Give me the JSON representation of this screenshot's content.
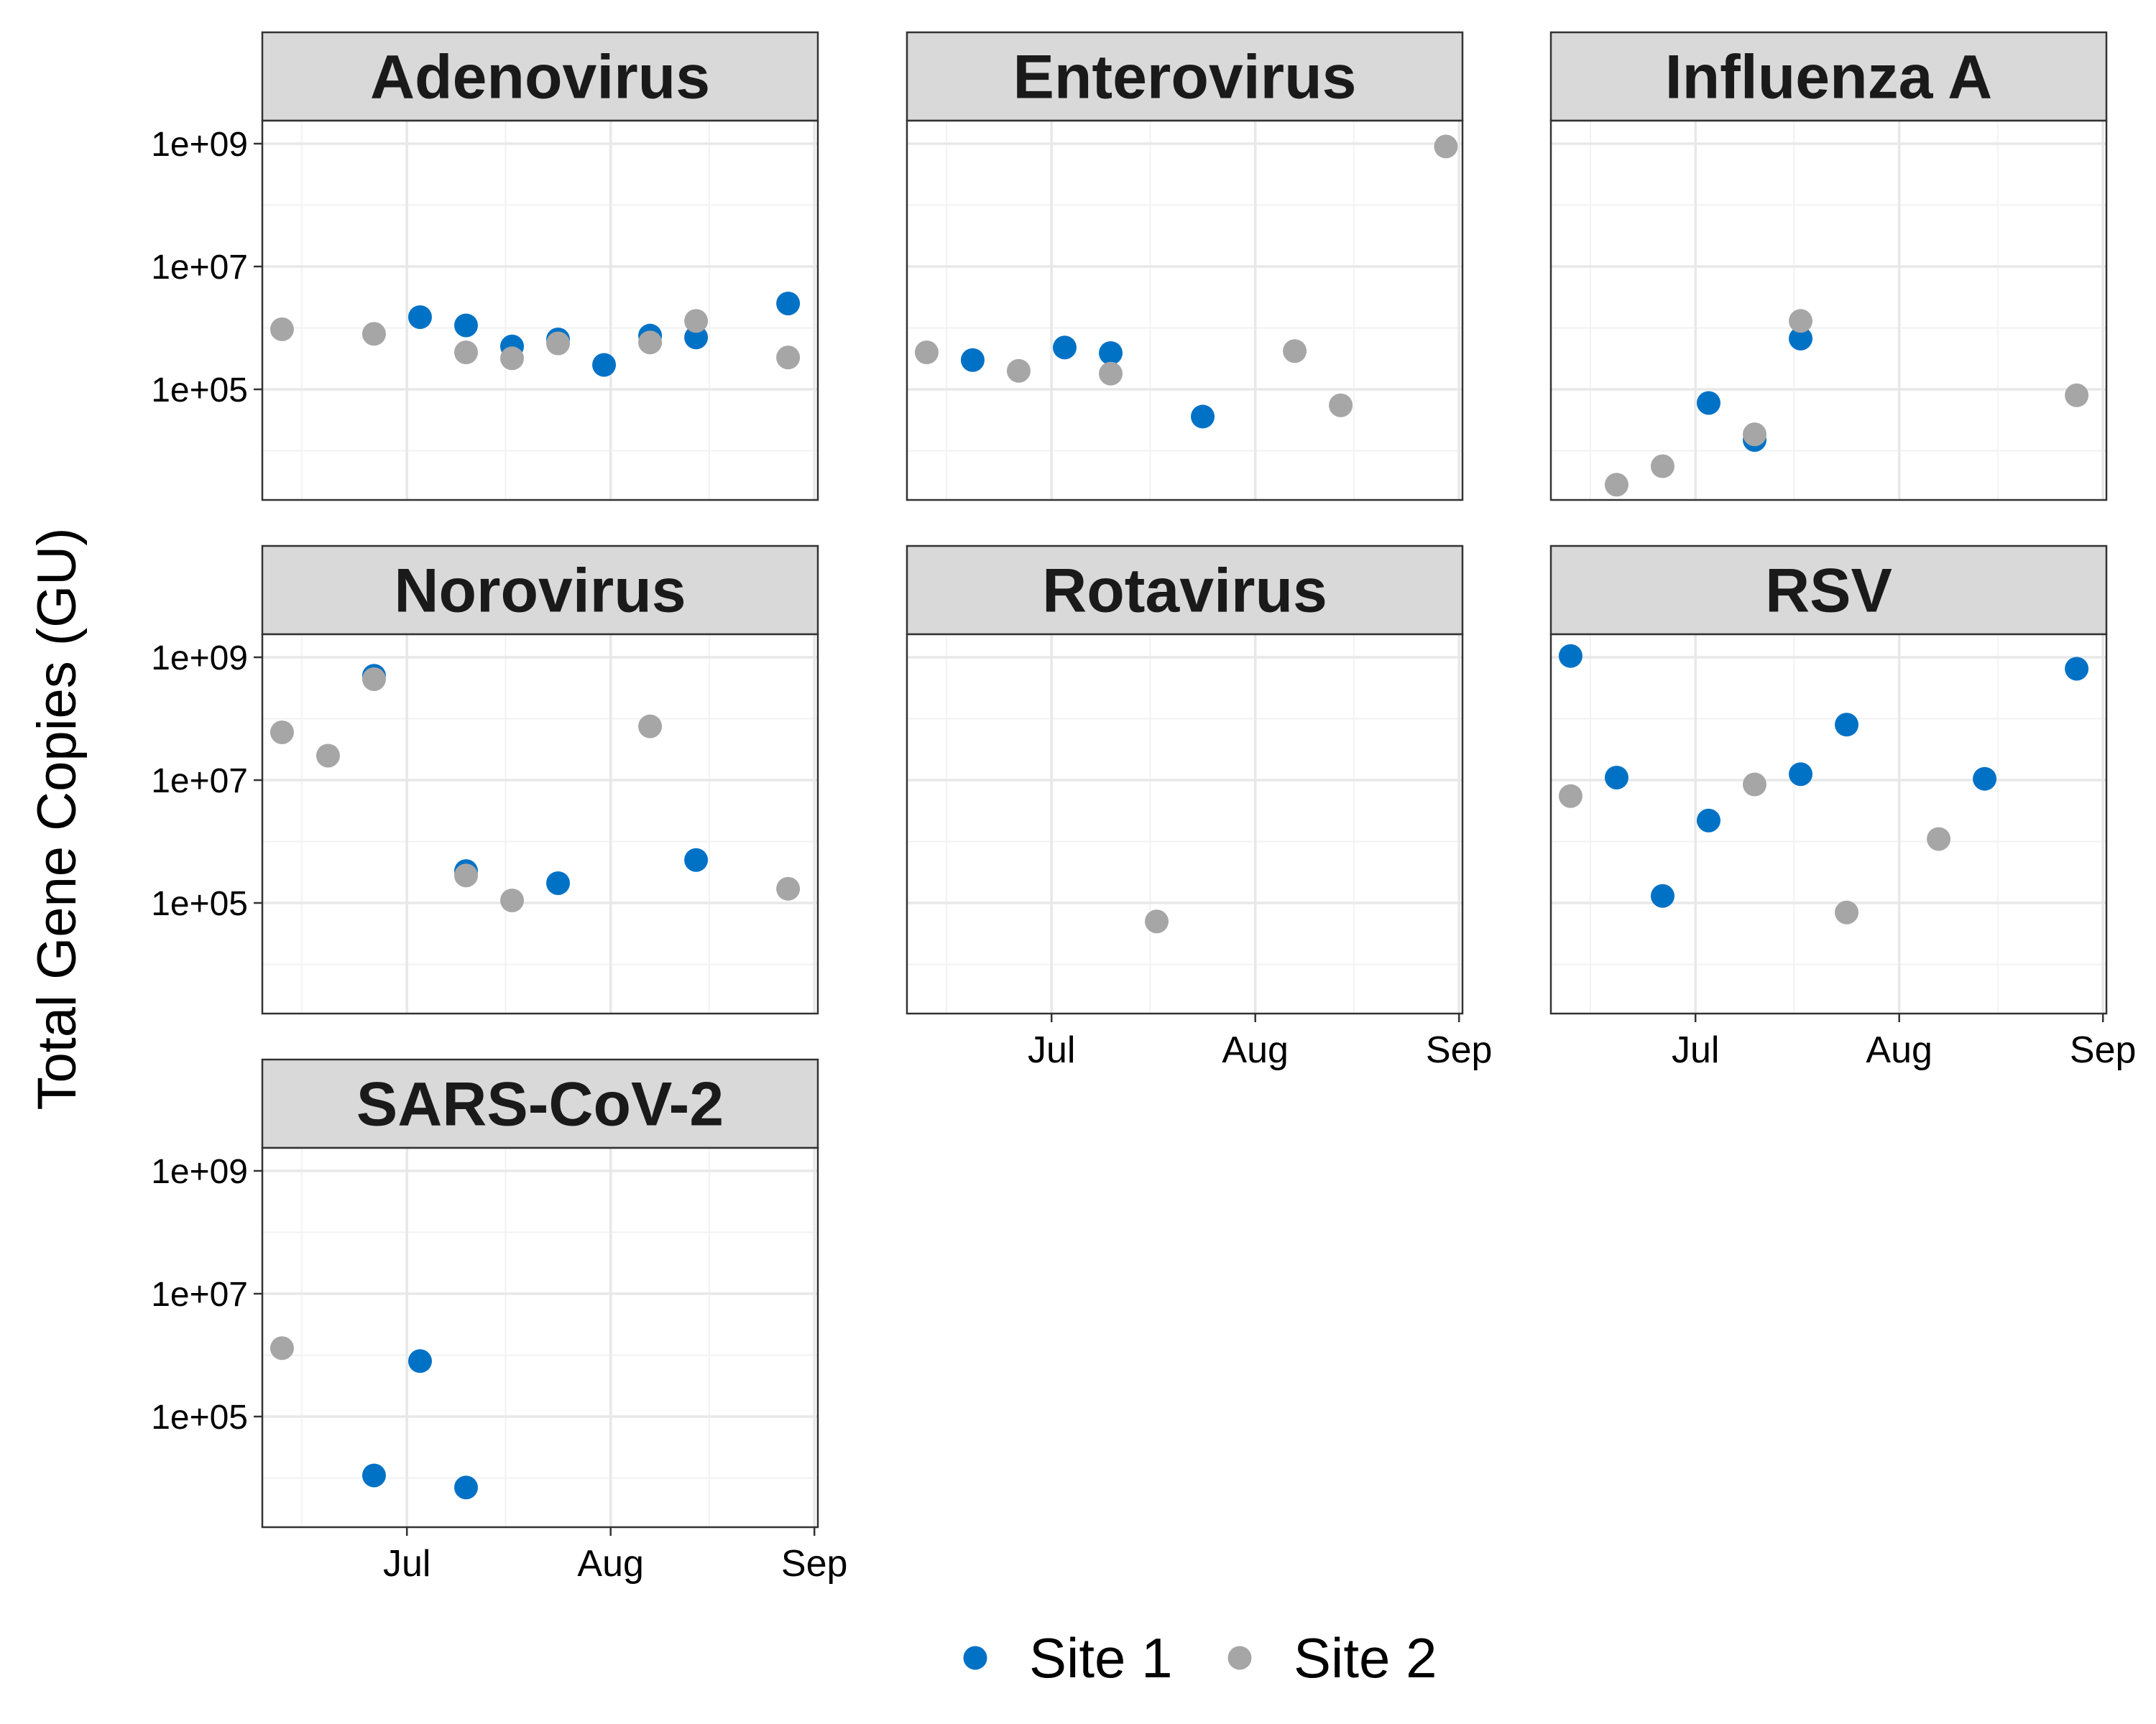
{
  "chart_data": {
    "type": "scatter",
    "ylabel": "Total Gene Copies (GU)",
    "xlabel": "",
    "y_scale": "log10",
    "y_ticks": [
      "1e+05",
      "1e+07",
      "1e+09"
    ],
    "x_ticks": [
      "Jul",
      "Aug",
      "Sep"
    ],
    "legend": {
      "placement": "bottom",
      "entries": [
        {
          "name": "Site 1",
          "color": "#0072C6"
        },
        {
          "name": "Site 2",
          "color": "#A6A6A6"
        }
      ]
    },
    "series_names": [
      "Site 1",
      "Site 2"
    ],
    "panels": [
      {
        "title": "Adenovirus",
        "series": [
          {
            "name": "Site 1",
            "points": [
              [
                "2021-07-03",
                1500000
              ],
              [
                "2021-07-10",
                1100000
              ],
              [
                "2021-07-17",
                500000
              ],
              [
                "2021-07-24",
                650000
              ],
              [
                "2021-07-31",
                250000
              ],
              [
                "2021-08-07",
                750000
              ],
              [
                "2021-08-14",
                700000
              ],
              [
                "2021-08-28",
                2500000
              ]
            ]
          },
          {
            "name": "Site 2",
            "points": [
              [
                "2021-06-12",
                950000
              ],
              [
                "2021-06-26",
                800000
              ],
              [
                "2021-07-10",
                400000
              ],
              [
                "2021-07-17",
                320000
              ],
              [
                "2021-07-24",
                560000
              ],
              [
                "2021-08-07",
                580000
              ],
              [
                "2021-08-14",
                1300000
              ],
              [
                "2021-08-28",
                330000
              ]
            ]
          }
        ]
      },
      {
        "title": "Enterovirus",
        "series": [
          {
            "name": "Site 1",
            "points": [
              [
                "2021-06-19",
                300000
              ],
              [
                "2021-07-03",
                480000
              ],
              [
                "2021-07-10",
                390000
              ],
              [
                "2021-07-24",
                36000
              ]
            ]
          },
          {
            "name": "Site 2",
            "points": [
              [
                "2021-06-12",
                400000
              ],
              [
                "2021-06-26",
                200000
              ],
              [
                "2021-07-10",
                180000
              ],
              [
                "2021-08-07",
                420000
              ],
              [
                "2021-08-14",
                55000
              ],
              [
                "2021-08-30",
                900000000
              ]
            ]
          }
        ]
      },
      {
        "title": "Influenza A",
        "series": [
          {
            "name": "Site 1",
            "points": [
              [
                "2021-07-03",
                60000
              ],
              [
                "2021-07-10",
                15000
              ],
              [
                "2021-07-17",
                670000
              ]
            ]
          },
          {
            "name": "Site 2",
            "points": [
              [
                "2021-06-19",
                2800
              ],
              [
                "2021-06-26",
                5600
              ],
              [
                "2021-07-10",
                18500
              ],
              [
                "2021-07-17",
                1300000
              ],
              [
                "2021-08-28",
                80000
              ]
            ]
          }
        ]
      },
      {
        "title": "Norovirus",
        "series": [
          {
            "name": "Site 1",
            "points": [
              [
                "2021-06-26",
                500000000
              ],
              [
                "2021-07-10",
                330000
              ],
              [
                "2021-07-24",
                210000
              ],
              [
                "2021-08-14",
                500000
              ]
            ]
          },
          {
            "name": "Site 2",
            "points": [
              [
                "2021-06-12",
                60000000
              ],
              [
                "2021-06-19",
                25000000
              ],
              [
                "2021-06-26",
                440000000
              ],
              [
                "2021-07-10",
                280000
              ],
              [
                "2021-07-17",
                110000
              ],
              [
                "2021-08-07",
                75000000
              ],
              [
                "2021-08-28",
                170000
              ]
            ]
          }
        ]
      },
      {
        "title": "Rotavirus",
        "series": [
          {
            "name": "Site 1",
            "points": []
          },
          {
            "name": "Site 2",
            "points": [
              [
                "2021-07-17",
                50000
              ]
            ]
          }
        ]
      },
      {
        "title": "RSV",
        "series": [
          {
            "name": "Site 1",
            "points": [
              [
                "2021-06-12",
                1050000000
              ],
              [
                "2021-06-19",
                11000000
              ],
              [
                "2021-06-26",
                130000
              ],
              [
                "2021-07-03",
                2200000
              ],
              [
                "2021-07-17",
                12500000
              ],
              [
                "2021-07-24",
                80000000
              ],
              [
                "2021-08-14",
                10500000
              ],
              [
                "2021-08-28",
                650000000
              ]
            ]
          },
          {
            "name": "Site 2",
            "points": [
              [
                "2021-06-12",
                5500000
              ],
              [
                "2021-07-10",
                8500000
              ],
              [
                "2021-07-24",
                70000
              ],
              [
                "2021-08-07",
                1100000
              ]
            ]
          }
        ]
      },
      {
        "title": "SARS-CoV-2",
        "series": [
          {
            "name": "Site 1",
            "points": [
              [
                "2021-06-26",
                11000
              ],
              [
                "2021-07-03",
                800000
              ],
              [
                "2021-07-10",
                7000
              ]
            ]
          },
          {
            "name": "Site 2",
            "points": [
              [
                "2021-06-12",
                1300000
              ]
            ]
          }
        ]
      }
    ]
  }
}
